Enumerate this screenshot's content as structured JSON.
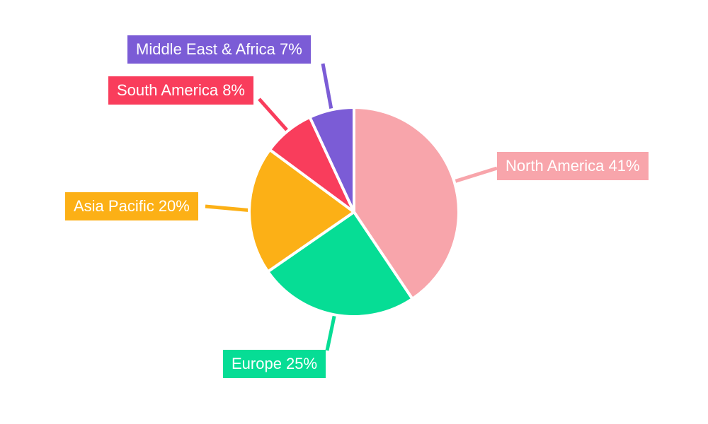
{
  "chart_data": {
    "type": "pie",
    "start_angle": "top",
    "direction": "clockwise",
    "background_color": "#FFFFFF",
    "legend_position": "none",
    "label_style": "outside callout boxes filled with slice color, white text, leader lines",
    "label_text_color": "#FFFFFF",
    "slices": [
      {
        "id": "north-america",
        "label": "North America",
        "value": 41,
        "unit": "%",
        "callout_label": "North America 41%",
        "color": "#F8A5AB"
      },
      {
        "id": "europe",
        "label": "Europe",
        "value": 25,
        "unit": "%",
        "callout_label": "Europe 25%",
        "color": "#06DD95"
      },
      {
        "id": "asia-pacific",
        "label": "Asia Pacific",
        "value": 20,
        "unit": "%",
        "callout_label": "Asia Pacific 20%",
        "color": "#FCB016"
      },
      {
        "id": "south-america",
        "label": "South America",
        "value": 8,
        "unit": "%",
        "callout_label": "South America 8%",
        "color": "#F93D5C"
      },
      {
        "id": "middle-east-africa",
        "label": "Middle East & Africa",
        "value": 7,
        "unit": "%",
        "callout_label": "Middle East & Africa 7%",
        "color": "#7B5CD6"
      }
    ]
  }
}
